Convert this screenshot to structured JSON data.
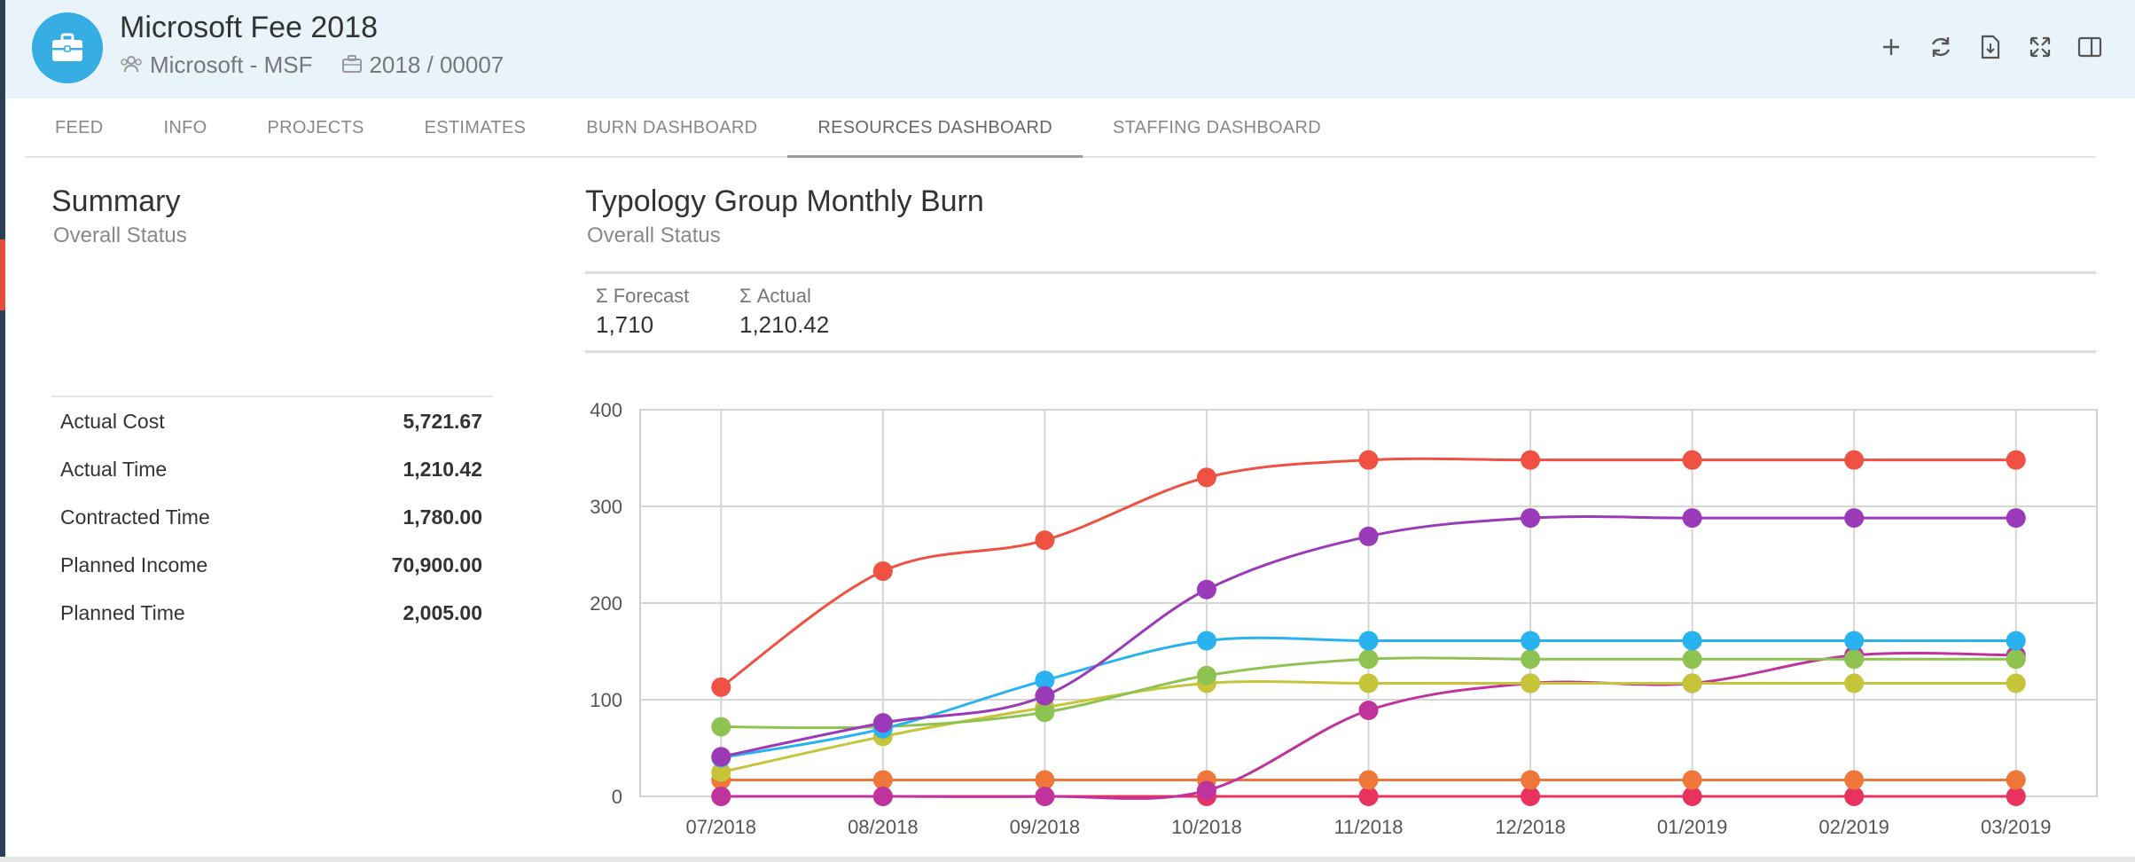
{
  "header": {
    "title": "Microsoft Fee 2018",
    "client": "Microsoft - MSF",
    "code": "2018 / 00007",
    "actions": [
      "plus-icon",
      "refresh-icon",
      "export-icon",
      "expand-icon",
      "split-view-icon"
    ]
  },
  "tabs": [
    {
      "label": "FEED"
    },
    {
      "label": "INFO"
    },
    {
      "label": "PROJECTS"
    },
    {
      "label": "ESTIMATES"
    },
    {
      "label": "BURN DASHBOARD"
    },
    {
      "label": "RESOURCES DASHBOARD",
      "active": true
    },
    {
      "label": "STAFFING DASHBOARD"
    }
  ],
  "summary": {
    "title": "Summary",
    "subtitle": "Overall Status",
    "rows": [
      {
        "label": "Actual Cost",
        "value": "5,721.67"
      },
      {
        "label": "Actual Time",
        "value": "1,210.42"
      },
      {
        "label": "Contracted Time",
        "value": "1,780.00"
      },
      {
        "label": "Planned Income",
        "value": "70,900.00"
      },
      {
        "label": "Planned Time",
        "value": "2,005.00"
      }
    ]
  },
  "burn": {
    "title": "Typology Group Monthly Burn",
    "subtitle": "Overall Status",
    "forecast_label": "Σ Forecast",
    "forecast_value": "1,710",
    "actual_label": "Σ Actual",
    "actual_value": "1,210.42"
  },
  "chart_data": {
    "type": "line",
    "categories": [
      "07/2018",
      "08/2018",
      "09/2018",
      "10/2018",
      "11/2018",
      "12/2018",
      "01/2019",
      "02/2019",
      "03/2019"
    ],
    "ylim": [
      0,
      400
    ],
    "yticks": [
      0,
      100,
      200,
      300,
      400
    ],
    "grid": true,
    "series": [
      {
        "color": "#ef5142",
        "values": [
          113,
          233,
          265,
          330,
          348,
          348,
          348,
          348,
          348
        ]
      },
      {
        "color": "#9b3ab8",
        "values": [
          41,
          76,
          104,
          214,
          269,
          288,
          288,
          288,
          288
        ]
      },
      {
        "color": "#28b2f0",
        "values": [
          40,
          70,
          120,
          161,
          161,
          161,
          161,
          161,
          161
        ]
      },
      {
        "color": "#8ec351",
        "values": [
          72,
          72,
          87,
          125,
          142,
          142,
          142,
          142,
          142
        ]
      },
      {
        "color": "#c6c53a",
        "values": [
          25,
          62,
          92,
          117,
          117,
          117,
          117,
          117,
          117
        ]
      },
      {
        "color": "#c0339c",
        "values": [
          0,
          0,
          0,
          6,
          89,
          117,
          117,
          146,
          146
        ]
      },
      {
        "color": "#f0773a",
        "values": [
          17,
          17,
          17,
          17,
          17,
          17,
          17,
          17,
          17
        ]
      },
      {
        "color": "#e8335f",
        "values": [
          0,
          0,
          0,
          0,
          0,
          0,
          0,
          0,
          0
        ]
      }
    ]
  }
}
